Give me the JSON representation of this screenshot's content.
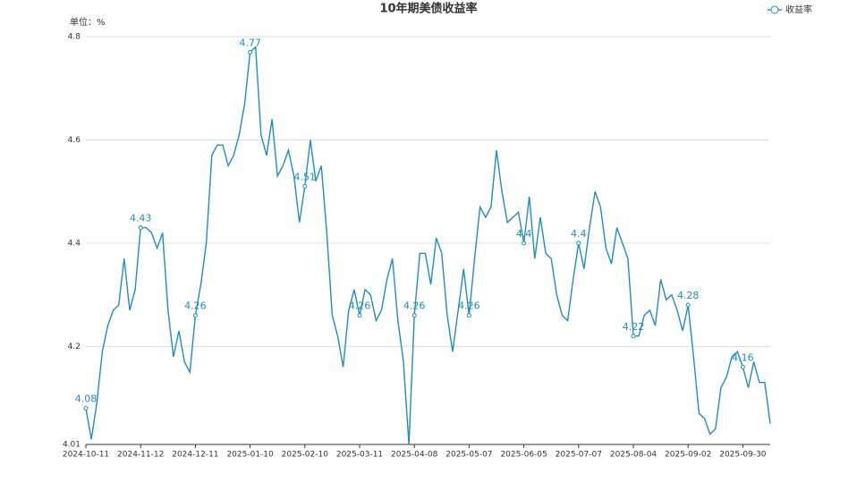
{
  "chart_data": {
    "type": "line",
    "title": "10年期美债收益率",
    "y_axis_label": "单位：%",
    "legend_position": "top-right",
    "grid": true,
    "categories": [
      "2024-10-11",
      null,
      null,
      null,
      null,
      null,
      null,
      null,
      null,
      null,
      "2024-11-12",
      null,
      null,
      null,
      null,
      null,
      null,
      null,
      null,
      null,
      "2024-12-11",
      null,
      null,
      null,
      null,
      null,
      null,
      null,
      null,
      null,
      "2025-01-10",
      null,
      null,
      null,
      null,
      null,
      null,
      null,
      null,
      null,
      "2025-02-10",
      null,
      null,
      null,
      null,
      null,
      null,
      null,
      null,
      null,
      "2025-03-11",
      null,
      null,
      null,
      null,
      null,
      null,
      null,
      null,
      null,
      "2025-04-08",
      null,
      null,
      null,
      null,
      null,
      null,
      null,
      null,
      null,
      "2025-05-07",
      null,
      null,
      null,
      null,
      null,
      null,
      null,
      null,
      null,
      "2025-06-05",
      null,
      null,
      null,
      null,
      null,
      null,
      null,
      null,
      null,
      "2025-07-07",
      null,
      null,
      null,
      null,
      null,
      null,
      null,
      null,
      null,
      "2025-08-04",
      null,
      null,
      null,
      null,
      null,
      null,
      null,
      null,
      null,
      "2025-09-02",
      null,
      null,
      null,
      null,
      null,
      null,
      null,
      null,
      null,
      "2025-09-30",
      null,
      null,
      null,
      null,
      null
    ],
    "series": [
      {
        "name": "收益率",
        "color": "#1f8dc0",
        "values": [
          4.08,
          4.02,
          4.09,
          4.19,
          4.24,
          4.27,
          4.28,
          4.37,
          4.27,
          4.31,
          4.43,
          4.43,
          4.42,
          4.39,
          4.42,
          4.27,
          4.18,
          4.23,
          4.17,
          4.15,
          4.26,
          4.32,
          4.4,
          4.57,
          4.59,
          4.59,
          4.55,
          4.57,
          4.61,
          4.67,
          4.77,
          4.78,
          4.61,
          4.57,
          4.64,
          4.53,
          4.55,
          4.58,
          4.53,
          4.44,
          4.51,
          4.6,
          4.52,
          4.55,
          4.42,
          4.26,
          4.22,
          4.16,
          4.27,
          4.31,
          4.26,
          4.31,
          4.3,
          4.25,
          4.27,
          4.33,
          4.37,
          4.25,
          4.17,
          4.01,
          4.26,
          4.38,
          4.38,
          4.32,
          4.41,
          4.38,
          4.26,
          4.19,
          4.27,
          4.35,
          4.26,
          4.37,
          4.47,
          4.45,
          4.47,
          4.58,
          4.5,
          4.44,
          4.45,
          4.46,
          4.4,
          4.49,
          4.37,
          4.45,
          4.38,
          4.37,
          4.3,
          4.26,
          4.25,
          4.33,
          4.4,
          4.35,
          4.43,
          4.5,
          4.47,
          4.39,
          4.36,
          4.43,
          4.4,
          4.37,
          4.22,
          4.22,
          4.26,
          4.27,
          4.24,
          4.33,
          4.29,
          4.3,
          4.27,
          4.23,
          4.28,
          4.18,
          4.07,
          4.06,
          4.03,
          4.04,
          4.12,
          4.14,
          4.18,
          4.19,
          4.16,
          4.12,
          4.17,
          4.13,
          4.13,
          4.05
        ],
        "value_labels": [
          "4.08",
          null,
          null,
          null,
          null,
          null,
          null,
          null,
          null,
          null,
          "4.43",
          null,
          null,
          null,
          null,
          null,
          null,
          null,
          null,
          null,
          "4.26",
          null,
          null,
          null,
          null,
          null,
          null,
          null,
          null,
          null,
          "4.77",
          null,
          null,
          null,
          null,
          null,
          null,
          null,
          null,
          null,
          "4.51",
          null,
          null,
          null,
          null,
          null,
          null,
          null,
          null,
          null,
          "4.26",
          null,
          null,
          null,
          null,
          null,
          null,
          null,
          null,
          null,
          "4.26",
          null,
          null,
          null,
          null,
          null,
          null,
          null,
          null,
          null,
          "4.26",
          null,
          null,
          null,
          null,
          null,
          null,
          null,
          null,
          null,
          "4.4",
          null,
          null,
          null,
          null,
          null,
          null,
          null,
          null,
          null,
          "4.4",
          null,
          null,
          null,
          null,
          null,
          null,
          null,
          null,
          null,
          "4.22",
          null,
          null,
          null,
          null,
          null,
          null,
          null,
          null,
          null,
          "4.28",
          null,
          null,
          null,
          null,
          null,
          null,
          null,
          null,
          null,
          "4.16",
          null,
          null,
          null,
          null,
          null
        ]
      }
    ],
    "ylim": [
      4.01,
      4.8
    ],
    "yticks": [
      4.01,
      4.2,
      4.4,
      4.6,
      4.8
    ]
  }
}
